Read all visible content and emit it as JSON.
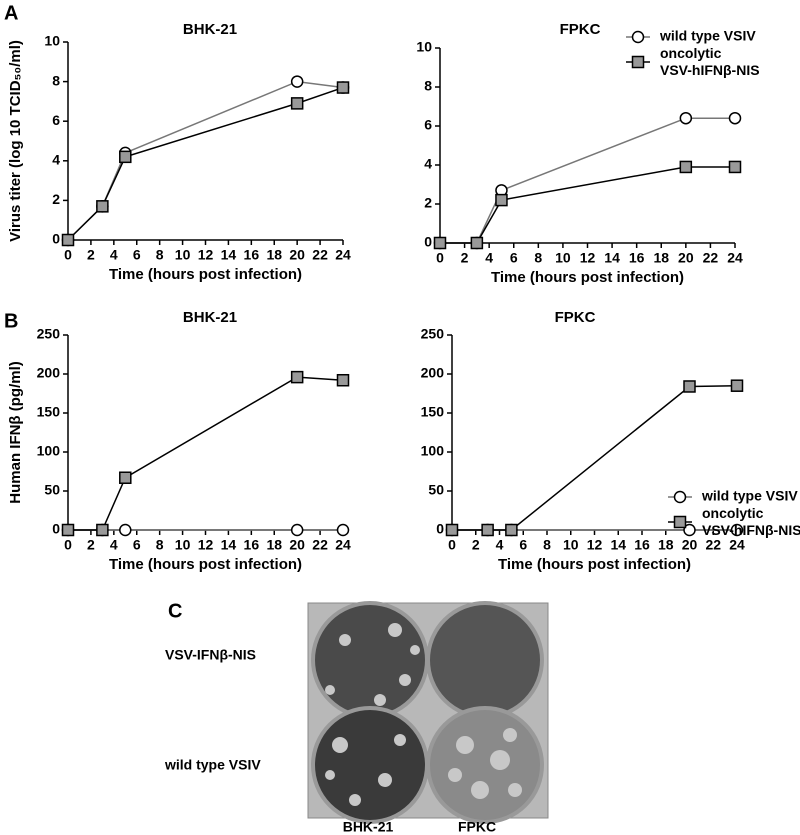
{
  "panel_labels": [
    "A",
    "B",
    "C"
  ],
  "chart_data": [
    {
      "type": "line",
      "title": "BHK-21",
      "y_label": "Virus titer (log 10  TCID₅₀/ml)",
      "x_label": "Time (hours post infection)",
      "x": [
        0,
        3,
        5,
        20,
        24
      ],
      "xlim": [
        0,
        24
      ],
      "xticks": [
        0,
        2,
        4,
        6,
        8,
        10,
        12,
        14,
        16,
        18,
        20,
        22,
        24
      ],
      "ylim": [
        0,
        10
      ],
      "yticks": [
        0,
        2,
        4,
        6,
        8,
        10
      ],
      "series": [
        {
          "name": "wild type VSIV",
          "color": "#777777",
          "marker": "circle",
          "values": [
            0,
            1.7,
            4.4,
            8.0,
            7.7
          ]
        },
        {
          "name": "oncolytic VSV-hIFNβ-NIS",
          "color": "#000000",
          "marker": "square",
          "values": [
            0,
            1.7,
            4.2,
            6.9,
            7.7
          ]
        }
      ]
    },
    {
      "type": "line",
      "title": "FPKC",
      "x_label": "Time (hours post infection)",
      "x": [
        0,
        3,
        5,
        20,
        24
      ],
      "xlim": [
        0,
        24
      ],
      "xticks": [
        0,
        2,
        4,
        6,
        8,
        10,
        12,
        14,
        16,
        18,
        20,
        22,
        24
      ],
      "ylim": [
        0,
        10
      ],
      "yticks": [
        0,
        2,
        4,
        6,
        8,
        10
      ],
      "legend": "top-right",
      "series": [
        {
          "name": "wild type VSIV",
          "color": "#777777",
          "marker": "circle",
          "values": [
            0,
            0,
            2.7,
            6.4,
            6.4
          ]
        },
        {
          "name": "oncolytic VSV-hIFNβ-NIS",
          "color": "#000000",
          "marker": "square",
          "values": [
            0,
            0,
            2.2,
            3.9,
            3.9
          ]
        }
      ]
    },
    {
      "type": "line",
      "title": "BHK-21",
      "y_label": "Human IFNβ (pg/ml)",
      "x_label": "Time (hours post infection)",
      "x": [
        0,
        3,
        5,
        20,
        24
      ],
      "xlim": [
        0,
        24
      ],
      "xticks": [
        0,
        2,
        4,
        6,
        8,
        10,
        12,
        14,
        16,
        18,
        20,
        22,
        24
      ],
      "ylim": [
        0,
        250
      ],
      "yticks": [
        0,
        50,
        100,
        150,
        200,
        250
      ],
      "series": [
        {
          "name": "wild type VSIV",
          "color": "#777777",
          "marker": "circle",
          "values": [
            0,
            0,
            0,
            0,
            0
          ]
        },
        {
          "name": "oncolytic VSV-hIFNβ-NIS",
          "color": "#000000",
          "marker": "square",
          "values": [
            0,
            0,
            67,
            196,
            192
          ]
        }
      ]
    },
    {
      "type": "line",
      "title": "FPKC",
      "x_label": "Time (hours post infection)",
      "x": [
        0,
        3,
        5,
        20,
        24
      ],
      "xlim": [
        0,
        24
      ],
      "xticks": [
        0,
        2,
        4,
        6,
        8,
        10,
        12,
        14,
        16,
        18,
        20,
        22,
        24
      ],
      "ylim": [
        0,
        250
      ],
      "yticks": [
        0,
        50,
        100,
        150,
        200,
        250
      ],
      "legend": "right",
      "series": [
        {
          "name": "wild type VSIV",
          "color": "#777777",
          "marker": "circle",
          "values": [
            0,
            0,
            0,
            0,
            0
          ]
        },
        {
          "name": "oncolytic VSV-hIFNβ-NIS",
          "color": "#000000",
          "marker": "square",
          "values": [
            0,
            0,
            0,
            184,
            185
          ]
        }
      ]
    }
  ],
  "image_panel": {
    "row_labels": [
      "VSV-IFNβ-NIS",
      "wild type  VSIV"
    ],
    "column_labels": [
      "BHK-21",
      "FPKC"
    ]
  }
}
